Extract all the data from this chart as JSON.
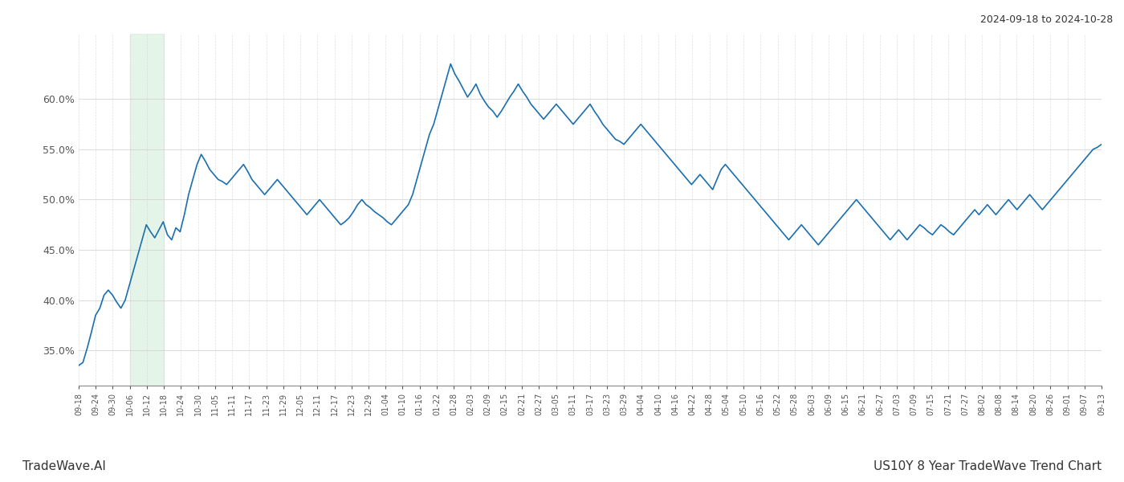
{
  "title_top_right": "2024-09-18 to 2024-10-28",
  "bottom_left": "TradeWave.AI",
  "bottom_right": "US10Y 8 Year TradeWave Trend Chart",
  "line_color": "#1a6faf",
  "shade_color": "#d4edda",
  "shade_alpha": 0.6,
  "background_color": "#ffffff",
  "grid_color": "#cccccc",
  "ylim": [
    31.5,
    66.5
  ],
  "yticks": [
    35.0,
    40.0,
    45.0,
    50.0,
    55.0,
    60.0
  ],
  "x_labels": [
    "09-18",
    "09-24",
    "09-30",
    "10-06",
    "10-12",
    "10-18",
    "10-24",
    "10-30",
    "11-05",
    "11-11",
    "11-17",
    "11-23",
    "11-29",
    "12-05",
    "12-11",
    "12-17",
    "12-23",
    "12-29",
    "01-04",
    "01-10",
    "01-16",
    "01-22",
    "01-28",
    "02-03",
    "02-09",
    "02-15",
    "02-21",
    "02-27",
    "03-05",
    "03-11",
    "03-17",
    "03-23",
    "03-29",
    "04-04",
    "04-10",
    "04-16",
    "04-22",
    "04-28",
    "05-04",
    "05-10",
    "05-16",
    "05-22",
    "05-28",
    "06-03",
    "06-09",
    "06-15",
    "06-21",
    "06-27",
    "07-03",
    "07-09",
    "07-15",
    "07-21",
    "07-27",
    "08-02",
    "08-08",
    "08-14",
    "08-20",
    "08-26",
    "09-01",
    "09-07",
    "09-13"
  ],
  "shade_start_label": "10-06",
  "shade_end_label": "10-18",
  "values": [
    33.5,
    33.8,
    35.2,
    36.8,
    38.5,
    39.2,
    40.5,
    41.0,
    40.5,
    39.8,
    39.2,
    40.0,
    41.5,
    43.0,
    44.5,
    46.0,
    47.5,
    46.8,
    46.2,
    47.0,
    47.8,
    46.5,
    46.0,
    47.2,
    46.8,
    48.5,
    50.5,
    52.0,
    53.5,
    54.5,
    53.8,
    53.0,
    52.5,
    52.0,
    51.8,
    51.5,
    52.0,
    52.5,
    53.0,
    53.5,
    52.8,
    52.0,
    51.5,
    51.0,
    50.5,
    51.0,
    51.5,
    52.0,
    51.5,
    51.0,
    50.5,
    50.0,
    49.5,
    49.0,
    48.5,
    49.0,
    49.5,
    50.0,
    49.5,
    49.0,
    48.5,
    48.0,
    47.5,
    47.8,
    48.2,
    48.8,
    49.5,
    50.0,
    49.5,
    49.2,
    48.8,
    48.5,
    48.2,
    47.8,
    47.5,
    48.0,
    48.5,
    49.0,
    49.5,
    50.5,
    52.0,
    53.5,
    55.0,
    56.5,
    57.5,
    59.0,
    60.5,
    62.0,
    63.5,
    62.5,
    61.8,
    61.0,
    60.2,
    60.8,
    61.5,
    60.5,
    59.8,
    59.2,
    58.8,
    58.2,
    58.8,
    59.5,
    60.2,
    60.8,
    61.5,
    60.8,
    60.2,
    59.5,
    59.0,
    58.5,
    58.0,
    58.5,
    59.0,
    59.5,
    59.0,
    58.5,
    58.0,
    57.5,
    58.0,
    58.5,
    59.0,
    59.5,
    58.8,
    58.2,
    57.5,
    57.0,
    56.5,
    56.0,
    55.8,
    55.5,
    56.0,
    56.5,
    57.0,
    57.5,
    57.0,
    56.5,
    56.0,
    55.5,
    55.0,
    54.5,
    54.0,
    53.5,
    53.0,
    52.5,
    52.0,
    51.5,
    52.0,
    52.5,
    52.0,
    51.5,
    51.0,
    52.0,
    53.0,
    53.5,
    53.0,
    52.5,
    52.0,
    51.5,
    51.0,
    50.5,
    50.0,
    49.5,
    49.0,
    48.5,
    48.0,
    47.5,
    47.0,
    46.5,
    46.0,
    46.5,
    47.0,
    47.5,
    47.0,
    46.5,
    46.0,
    45.5,
    46.0,
    46.5,
    47.0,
    47.5,
    48.0,
    48.5,
    49.0,
    49.5,
    50.0,
    49.5,
    49.0,
    48.5,
    48.0,
    47.5,
    47.0,
    46.5,
    46.0,
    46.5,
    47.0,
    46.5,
    46.0,
    46.5,
    47.0,
    47.5,
    47.2,
    46.8,
    46.5,
    47.0,
    47.5,
    47.2,
    46.8,
    46.5,
    47.0,
    47.5,
    48.0,
    48.5,
    49.0,
    48.5,
    49.0,
    49.5,
    49.0,
    48.5,
    49.0,
    49.5,
    50.0,
    49.5,
    49.0,
    49.5,
    50.0,
    50.5,
    50.0,
    49.5,
    49.0,
    49.5,
    50.0,
    50.5,
    51.0,
    51.5,
    52.0,
    52.5,
    53.0,
    53.5,
    54.0,
    54.5,
    55.0,
    55.2,
    55.5
  ]
}
